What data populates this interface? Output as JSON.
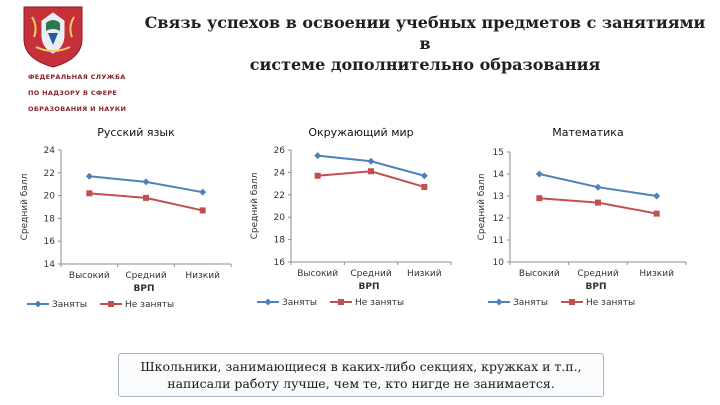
{
  "header": {
    "title_line1": "Связь успехов в освоении учебных предметов с занятиями в",
    "title_line2": "системе дополнительно образования",
    "logo_text": [
      "ФЕДЕРАЛЬНАЯ СЛУЖБА",
      "ПО НАДЗОРУ В СФЕРЕ",
      "ОБРАЗОВАНИЯ И НАУКИ"
    ]
  },
  "chart_data": [
    {
      "type": "line",
      "title": "Русский язык",
      "xlabel": "ВРП",
      "ylabel": "Средний балл",
      "categories": [
        "Высокий",
        "Средний",
        "Низкий"
      ],
      "ylim": [
        14,
        24
      ],
      "yticks": [
        14,
        16,
        18,
        20,
        22,
        24
      ],
      "series": [
        {
          "name": "Заняты",
          "values": [
            21.7,
            21.2,
            20.3
          ],
          "color": "#4f81bd",
          "marker": "diamond"
        },
        {
          "name": "Не заняты",
          "values": [
            20.2,
            19.8,
            18.7
          ],
          "color": "#c0504d",
          "marker": "square"
        }
      ],
      "legend": "bottom"
    },
    {
      "type": "line",
      "title": "Окружающий мир",
      "xlabel": "ВРП",
      "ylabel": "Средний балл",
      "categories": [
        "Высокий",
        "Средний",
        "Низкий"
      ],
      "ylim": [
        16,
        26
      ],
      "yticks": [
        16,
        18,
        20,
        22,
        24,
        26
      ],
      "series": [
        {
          "name": "Заняты",
          "values": [
            25.5,
            25.0,
            23.7
          ],
          "color": "#4f81bd",
          "marker": "diamond"
        },
        {
          "name": "Не заняты",
          "values": [
            23.7,
            24.1,
            22.7
          ],
          "color": "#c0504d",
          "marker": "square"
        }
      ],
      "legend": "bottom"
    },
    {
      "type": "line",
      "title": "Математика",
      "xlabel": "ВРП",
      "ylabel": "Средний балл",
      "categories": [
        "Высокий",
        "Средний",
        "Низкий"
      ],
      "ylim": [
        10,
        15
      ],
      "yticks": [
        10,
        11,
        12,
        13,
        14,
        15
      ],
      "series": [
        {
          "name": "Заняты",
          "values": [
            14.0,
            13.4,
            13.0
          ],
          "color": "#4f81bd",
          "marker": "diamond"
        },
        {
          "name": "Не заняты",
          "values": [
            12.9,
            12.7,
            12.2
          ],
          "color": "#c0504d",
          "marker": "square"
        }
      ],
      "legend": "bottom"
    }
  ],
  "note": {
    "line1": "Школьники, занимающиеся в каких-либо секциях, кружках и т.п.,",
    "line2": "написали работу лучше, чем те, кто нигде не занимается."
  }
}
